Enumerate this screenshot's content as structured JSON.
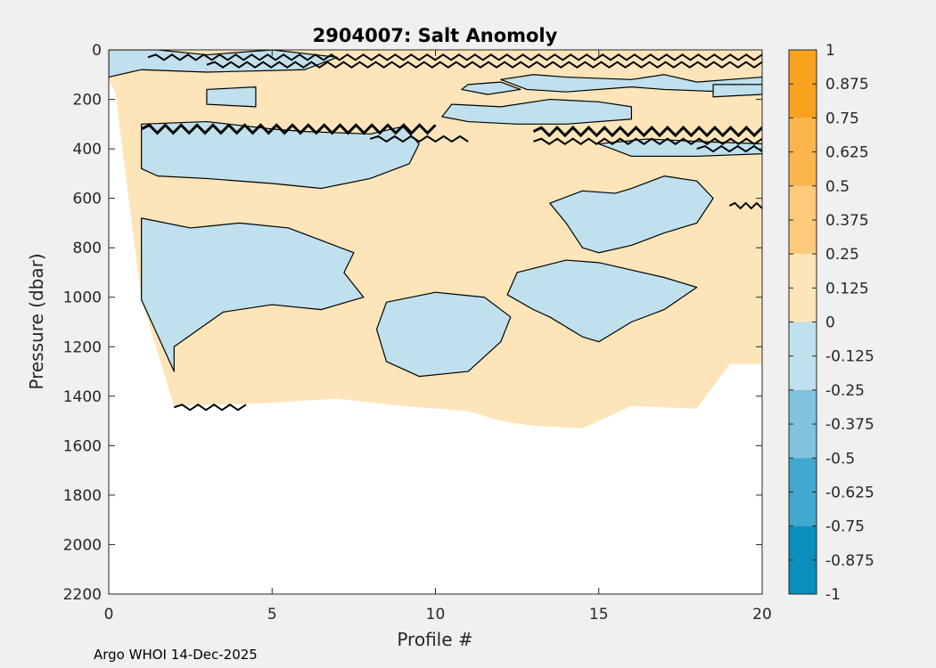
{
  "chart_data": {
    "type": "heatmap",
    "title": "2904007: Salt Anomoly",
    "xlabel": "Profile #",
    "ylabel": "Pressure (dbar)",
    "xlim": [
      0,
      20
    ],
    "ylim": [
      0,
      2200
    ],
    "y_reversed": true,
    "x_ticks": [
      0,
      5,
      10,
      15,
      20
    ],
    "y_ticks": [
      0,
      200,
      400,
      600,
      800,
      1000,
      1200,
      1400,
      1600,
      1800,
      2000,
      2200
    ],
    "colorbar": {
      "range": [
        -1,
        1
      ],
      "ticks": [
        "1",
        "0.875",
        "0.75",
        "0.625",
        "0.5",
        "0.375",
        "0.25",
        "0.125",
        "0",
        "-0.125",
        "-0.25",
        "-0.375",
        "-0.5",
        "-0.625",
        "-0.75",
        "-0.875",
        "-1"
      ],
      "levels": [
        {
          "from": 0.75,
          "to": 1.0,
          "color": "#f9a21f"
        },
        {
          "from": 0.5,
          "to": 0.75,
          "color": "#fbb54a"
        },
        {
          "from": 0.25,
          "to": 0.5,
          "color": "#fcca7a"
        },
        {
          "from": 0.0,
          "to": 0.25,
          "color": "#fde5b9"
        },
        {
          "from": -0.25,
          "to": 0.0,
          "color": "#bfe0ec"
        },
        {
          "from": -0.5,
          "to": -0.25,
          "color": "#7fc3de"
        },
        {
          "from": -0.75,
          "to": -0.5,
          "color": "#41a8cf"
        },
        {
          "from": -1.0,
          "to": -0.75,
          "color": "#0b8fbf"
        }
      ]
    },
    "depth_profile": [
      {
        "x": 0,
        "max_pressure": 120
      },
      {
        "x": 0.2,
        "max_pressure": 170
      },
      {
        "x": 1,
        "max_pressure": 1010
      },
      {
        "x": 2,
        "max_pressure": 1440
      },
      {
        "x": 4.5,
        "max_pressure": 1430
      },
      {
        "x": 7,
        "max_pressure": 1410
      },
      {
        "x": 9,
        "max_pressure": 1440
      },
      {
        "x": 11,
        "max_pressure": 1460
      },
      {
        "x": 12,
        "max_pressure": 1500
      },
      {
        "x": 13,
        "max_pressure": 1520
      },
      {
        "x": 14.5,
        "max_pressure": 1530
      },
      {
        "x": 16,
        "max_pressure": 1440
      },
      {
        "x": 18,
        "max_pressure": 1450
      },
      {
        "x": 19,
        "max_pressure": 1270
      },
      {
        "x": 20,
        "max_pressure": 1270
      }
    ],
    "negative_regions": [
      [
        [
          0,
          0
        ],
        [
          1.5,
          0
        ],
        [
          3,
          20
        ],
        [
          5,
          0
        ],
        [
          7,
          30
        ],
        [
          6,
          80
        ],
        [
          3,
          90
        ],
        [
          1,
          80
        ],
        [
          0,
          110
        ]
      ],
      [
        [
          3,
          160
        ],
        [
          4.5,
          150
        ],
        [
          4.5,
          230
        ],
        [
          3,
          220
        ]
      ],
      [
        [
          1,
          300
        ],
        [
          3,
          290
        ],
        [
          5,
          320
        ],
        [
          6,
          330
        ],
        [
          8,
          340
        ],
        [
          9,
          310
        ],
        [
          9.5,
          380
        ],
        [
          9.2,
          460
        ],
        [
          8,
          520
        ],
        [
          6.5,
          560
        ],
        [
          5,
          540
        ],
        [
          3,
          520
        ],
        [
          1.5,
          510
        ],
        [
          1,
          480
        ]
      ],
      [
        [
          1,
          680
        ],
        [
          2.5,
          720
        ],
        [
          4,
          700
        ],
        [
          5.5,
          720
        ],
        [
          6.5,
          770
        ],
        [
          7.5,
          820
        ],
        [
          7.2,
          900
        ],
        [
          7.8,
          1000
        ],
        [
          6.5,
          1050
        ],
        [
          5,
          1030
        ],
        [
          3.5,
          1060
        ],
        [
          2,
          1200
        ],
        [
          2,
          1300
        ],
        [
          1,
          1010
        ]
      ],
      [
        [
          8.5,
          1020
        ],
        [
          10,
          980
        ],
        [
          11.5,
          1000
        ],
        [
          12.3,
          1080
        ],
        [
          12,
          1180
        ],
        [
          11,
          1300
        ],
        [
          9.5,
          1320
        ],
        [
          8.5,
          1260
        ],
        [
          8.2,
          1130
        ]
      ],
      [
        [
          12.5,
          900
        ],
        [
          14,
          850
        ],
        [
          15,
          860
        ],
        [
          16,
          890
        ],
        [
          17,
          920
        ],
        [
          18,
          960
        ],
        [
          17,
          1050
        ],
        [
          16,
          1100
        ],
        [
          15,
          1180
        ],
        [
          14.5,
          1160
        ],
        [
          13.5,
          1080
        ],
        [
          13,
          1050
        ],
        [
          12.2,
          990
        ]
      ],
      [
        [
          13.5,
          620
        ],
        [
          14.5,
          570
        ],
        [
          15.5,
          580
        ],
        [
          16,
          560
        ],
        [
          17,
          510
        ],
        [
          18,
          530
        ],
        [
          18.5,
          600
        ],
        [
          18,
          700
        ],
        [
          17,
          740
        ],
        [
          16,
          790
        ],
        [
          15,
          820
        ],
        [
          14.5,
          800
        ],
        [
          14,
          700
        ]
      ],
      [
        [
          10.5,
          220
        ],
        [
          12,
          230
        ],
        [
          13.5,
          200
        ],
        [
          15,
          210
        ],
        [
          16,
          230
        ],
        [
          16,
          280
        ],
        [
          14,
          300
        ],
        [
          12.5,
          300
        ],
        [
          11,
          290
        ],
        [
          10.2,
          270
        ]
      ],
      [
        [
          12,
          120
        ],
        [
          13,
          100
        ],
        [
          14,
          110
        ],
        [
          16,
          120
        ],
        [
          17,
          100
        ],
        [
          18,
          130
        ],
        [
          19,
          120
        ],
        [
          20,
          110
        ],
        [
          20,
          160
        ],
        [
          19,
          170
        ],
        [
          17,
          160
        ],
        [
          16,
          150
        ],
        [
          14,
          170
        ],
        [
          12.8,
          160
        ]
      ],
      [
        [
          11,
          140
        ],
        [
          12,
          130
        ],
        [
          12.6,
          160
        ],
        [
          11.6,
          180
        ],
        [
          10.8,
          160
        ]
      ],
      [
        [
          18.5,
          140
        ],
        [
          20,
          140
        ],
        [
          20,
          180
        ],
        [
          18.5,
          190
        ]
      ],
      [
        [
          15,
          380
        ],
        [
          16.5,
          360
        ],
        [
          18,
          370
        ],
        [
          20,
          380
        ],
        [
          20,
          420
        ],
        [
          18,
          430
        ],
        [
          16,
          430
        ]
      ]
    ],
    "contour_bands": [
      {
        "y": 30,
        "x0": 1.2,
        "x1": 20,
        "weight": 2
      },
      {
        "y": 60,
        "x0": 3,
        "x1": 20,
        "weight": 2
      },
      {
        "y": 320,
        "x0": 1,
        "x1": 10,
        "weight": 3
      },
      {
        "y": 330,
        "x0": 13,
        "x1": 20,
        "weight": 3
      },
      {
        "y": 360,
        "x0": 8,
        "x1": 11,
        "weight": 2
      },
      {
        "y": 370,
        "x0": 13,
        "x1": 20,
        "weight": 2
      },
      {
        "y": 400,
        "x0": 18,
        "x1": 20,
        "weight": 2
      },
      {
        "y": 630,
        "x0": 19,
        "x1": 20,
        "weight": 2
      },
      {
        "y": 1445,
        "x0": 2,
        "x1": 4.2,
        "weight": 2
      }
    ],
    "footer": "Argo WHOI 14-Dec-2025"
  }
}
